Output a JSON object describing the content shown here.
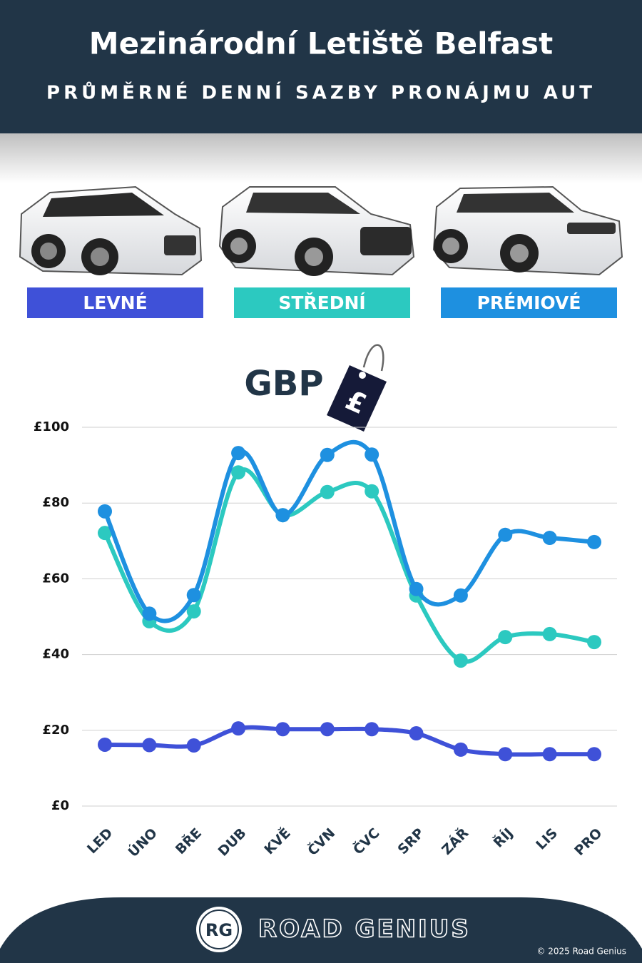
{
  "header": {
    "title": "Mezinárodní Letiště Belfast",
    "subtitle": "PRŮMĚRNÉ DENNÍ SAZBY PRONÁJMU AUT"
  },
  "chart_data": {
    "type": "line",
    "unit_label": "GBP",
    "unit_symbol": "£",
    "categories": [
      "LED",
      "ÚNO",
      "BŘE",
      "DUB",
      "KVĚ",
      "ČVN",
      "ČVC",
      "SRP",
      "ZÁŘ",
      "ŘÍJ",
      "LIS",
      "PRO"
    ],
    "series": [
      {
        "name": "LEVNÉ",
        "color": "#3f51d8",
        "values": [
          16.2,
          16.1,
          16.0,
          20.5,
          20.3,
          20.3,
          20.3,
          19.2,
          14.9,
          13.7,
          13.7,
          13.7
        ]
      },
      {
        "name": "STŘEDNÍ",
        "color": "#2cc9c0",
        "values": [
          72.1,
          48.8,
          51.4,
          88.1,
          76.8,
          82.9,
          83.1,
          55.6,
          38.4,
          44.6,
          45.4,
          43.3
        ]
      },
      {
        "name": "PRÉMIOVÉ",
        "color": "#1e90e0",
        "values": [
          77.8,
          50.8,
          55.7,
          93.2,
          76.8,
          92.7,
          92.8,
          57.3,
          55.6,
          71.6,
          70.8,
          69.7
        ]
      }
    ],
    "ylim": [
      0,
      100
    ],
    "yticks": [
      {
        "value": 0,
        "label": "£0"
      },
      {
        "value": 20,
        "label": "£20"
      },
      {
        "value": 40,
        "label": "£40"
      },
      {
        "value": 60,
        "label": "£60"
      },
      {
        "value": 80,
        "label": "£80"
      },
      {
        "value": 100,
        "label": "£100"
      }
    ],
    "grid": true
  },
  "footer": {
    "logo": "RG",
    "brand": "ROAD GENIUS",
    "copyright": "© 2025 Road Genius"
  }
}
